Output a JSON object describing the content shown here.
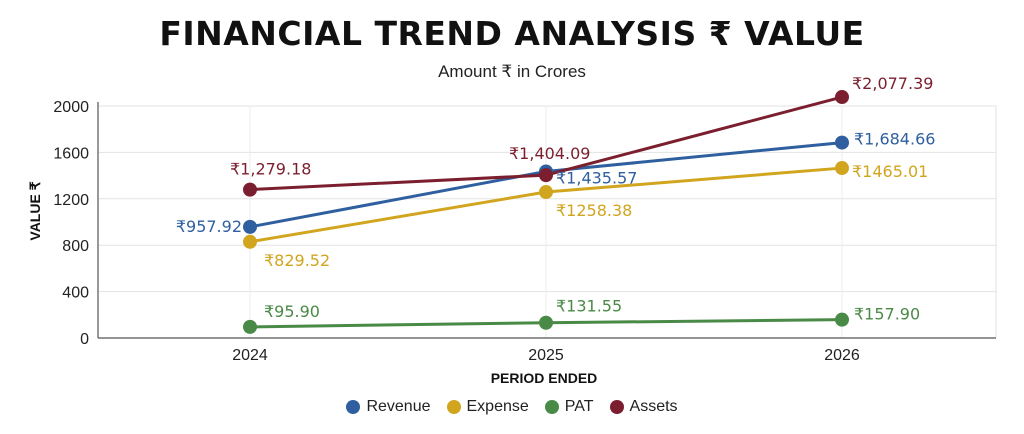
{
  "chart_data": {
    "type": "line",
    "title": "FINANCIAL TREND ANALYSIS ₹ VALUE",
    "subtitle": "Amount ₹ in Crores",
    "xlabel": "PERIOD ENDED",
    "ylabel": "VALUE ₹",
    "categories": [
      "2024",
      "2025",
      "2026"
    ],
    "ylim": [
      0,
      2000
    ],
    "yticks": [
      0,
      400,
      800,
      1200,
      1600,
      2000
    ],
    "grid": true,
    "legend_position": "bottom",
    "series": [
      {
        "name": "Revenue",
        "color": "#2f5f9e",
        "values": [
          957.92,
          1435.57,
          1684.66
        ],
        "labels": [
          "₹957.92",
          "₹1,435.57",
          "₹1,684.66"
        ]
      },
      {
        "name": "Expense",
        "color": "#d2a51f",
        "values": [
          829.52,
          1258.38,
          1465.01
        ],
        "labels": [
          "₹829.52",
          "₹1258.38",
          "₹1465.01"
        ]
      },
      {
        "name": "PAT",
        "color": "#4a8a47",
        "values": [
          95.9,
          131.55,
          157.9
        ],
        "labels": [
          "₹95.90",
          "₹131.55",
          "₹157.90"
        ]
      },
      {
        "name": "Assets",
        "color": "#7b1f2e",
        "values": [
          1279.18,
          1404.09,
          2077.39
        ],
        "labels": [
          "₹1,279.18",
          "₹1,404.09",
          "₹2,077.39"
        ]
      }
    ]
  }
}
